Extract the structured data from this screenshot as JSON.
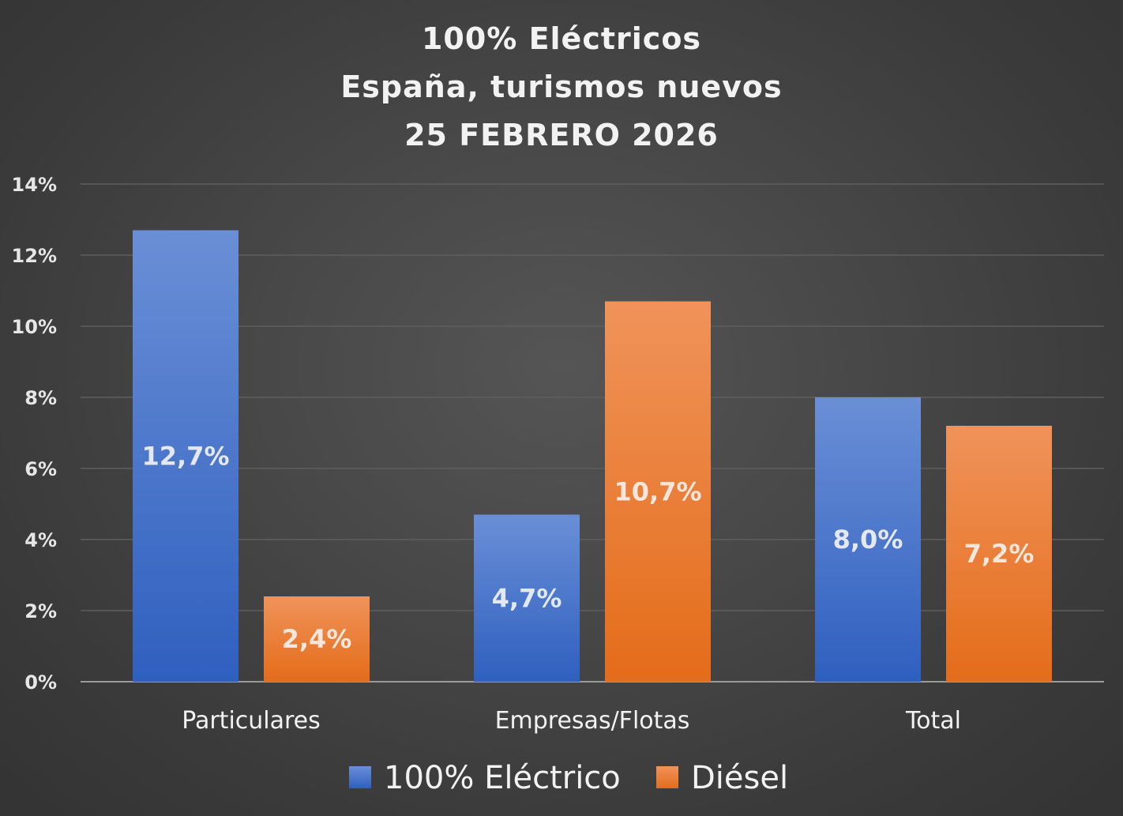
{
  "chart_data": {
    "type": "bar",
    "title": [
      "100% Eléctricos",
      "España, turismos nuevos",
      "25 FEBRERO 2026"
    ],
    "categories": [
      "Particulares",
      "Empresas/Flotas",
      "Total"
    ],
    "series": [
      {
        "name": "100% Eléctrico",
        "values": [
          12.7,
          4.7,
          8.0
        ],
        "labels": [
          "12,7%",
          "4,7%",
          "8,0%"
        ],
        "color": "#4472c4",
        "color_light": "#6a8fd6",
        "color_dark": "#2f5fbf",
        "label_color": "#e3e8f2"
      },
      {
        "name": "Diésel",
        "values": [
          2.4,
          10.7,
          7.2
        ],
        "labels": [
          "2,4%",
          "10,7%",
          "7,2%"
        ],
        "color": "#ed7d31",
        "color_light": "#f0935a",
        "color_dark": "#e46c1a",
        "label_color": "#f6e6db"
      }
    ],
    "ylim": [
      0,
      14
    ],
    "yticks": [
      0,
      2,
      4,
      6,
      8,
      10,
      12,
      14
    ],
    "ytick_labels": [
      "0%",
      "2%",
      "4%",
      "6%",
      "8%",
      "10%",
      "12%",
      "14%"
    ],
    "xlabel": "",
    "ylabel": "",
    "grid": true,
    "legend_position": "bottom-center"
  }
}
